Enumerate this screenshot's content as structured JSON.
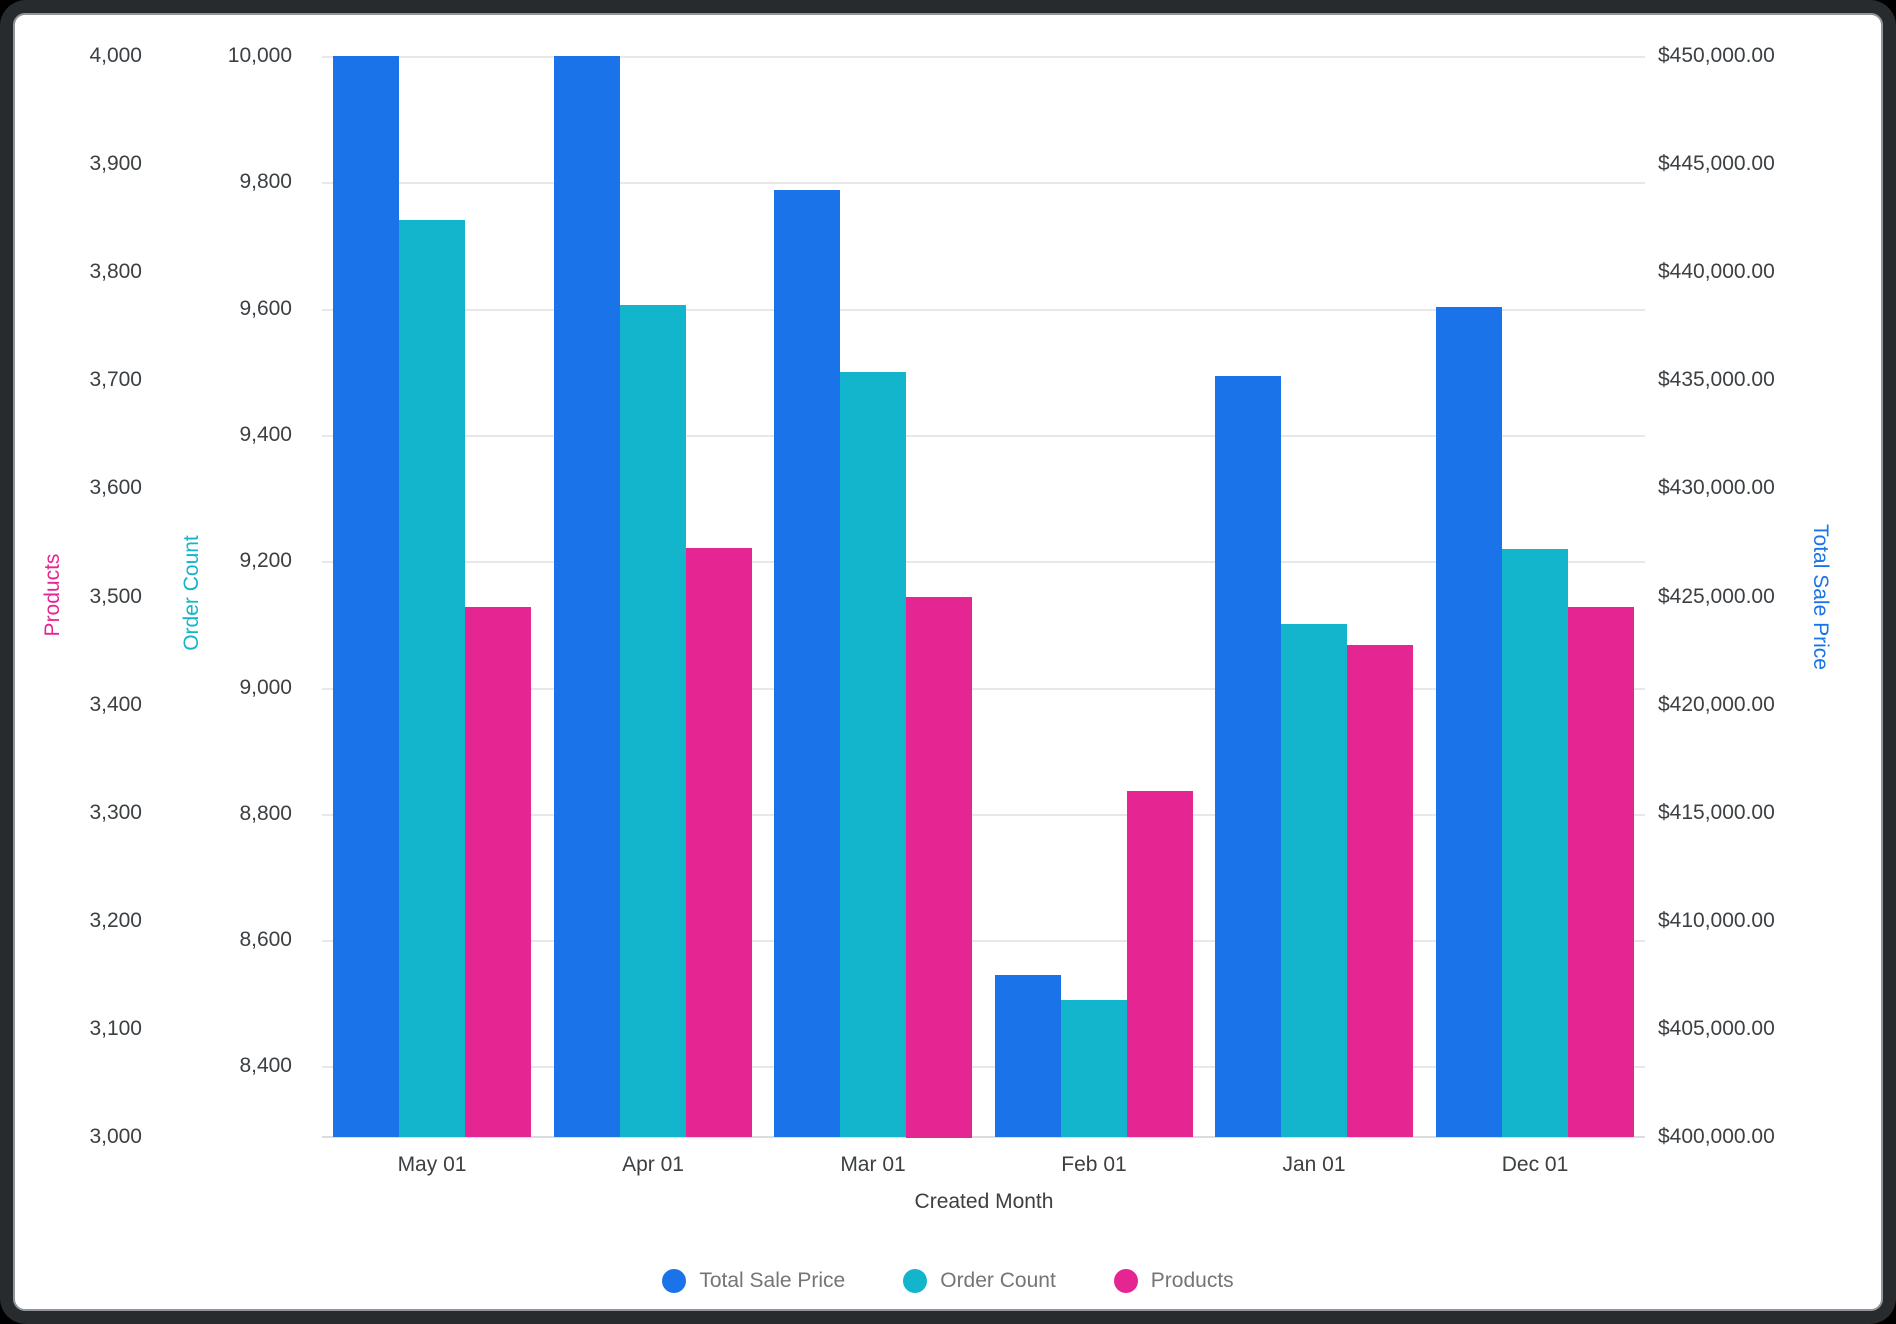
{
  "chart_data": {
    "type": "bar",
    "xlabel": "Created Month",
    "categories": [
      "May 01",
      "Apr 01",
      "Mar 01",
      "Feb 01",
      "Jan 01",
      "Dec 01"
    ],
    "series": [
      {
        "name": "Total Sale Price",
        "axis": "price",
        "color": "#1A73E8",
        "values": [
          450000,
          450000,
          443800,
          407500,
          435200,
          438400
        ]
      },
      {
        "name": "Order Count",
        "axis": "order",
        "color": "#12B5CB",
        "values": [
          9740,
          9605,
          9500,
          8505,
          9100,
          9220
        ]
      },
      {
        "name": "Products",
        "axis": "products",
        "color": "#E52592",
        "values": [
          3490,
          3545,
          3500,
          3320,
          3455,
          3490
        ]
      }
    ],
    "axes": {
      "products": {
        "title": "Products",
        "color": "#E52592",
        "side": "left-outer",
        "max": 4000,
        "min": 3000,
        "tick_step": 100,
        "ticks": [
          "4,000",
          "3,900",
          "3,800",
          "3,700",
          "3,600",
          "3,500",
          "3,400",
          "3,300",
          "3,200",
          "3,100",
          "3,000"
        ]
      },
      "order": {
        "title": "Order Count",
        "color": "#12B5CB",
        "side": "left-inner",
        "max": 10000,
        "tick_step": 200,
        "ticks": [
          "10,000",
          "9,800",
          "9,600",
          "9,400",
          "9,200",
          "9,000",
          "8,800",
          "8,600",
          "8,400"
        ]
      },
      "price": {
        "title": "Total Sale Price",
        "color": "#1A73E8",
        "side": "right",
        "max": 450000,
        "min": 400000,
        "tick_step": 5000,
        "ticks": [
          "$450,000.00",
          "$445,000.00",
          "$440,000.00",
          "$435,000.00",
          "$430,000.00",
          "$425,000.00",
          "$420,000.00",
          "$415,000.00",
          "$410,000.00",
          "$405,000.00",
          "$400,000.00"
        ]
      }
    },
    "legend": [
      "Total Sale Price",
      "Order Count",
      "Products"
    ],
    "legend_position": "bottom",
    "grid": true
  },
  "colors": {
    "grid": "#e8e8e8",
    "axis_line": "#dadce0",
    "tick_text": "#3c4043",
    "legend_text": "#757575",
    "background": "#ffffff",
    "frame": "#272b2e"
  }
}
